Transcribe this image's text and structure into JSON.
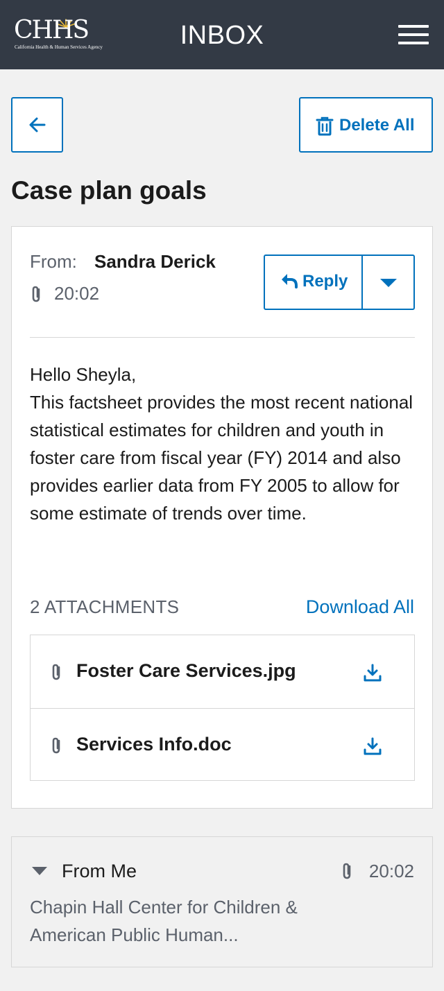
{
  "header": {
    "logo_text": "CHHS",
    "logo_subtext": "California Health & Human Services Agency",
    "title": "INBOX",
    "menu_icon": "hamburger-icon"
  },
  "toolbar": {
    "back_icon": "arrow-left-icon",
    "delete_all_label": "Delete All",
    "delete_icon": "trash-icon"
  },
  "thread": {
    "subject": "Case plan goals"
  },
  "message": {
    "from_label": "From:",
    "from_name": "Sandra Derick",
    "time": "20:02",
    "reply_label": "Reply",
    "body_greeting": "Hello Sheyla,",
    "body_text": "This factsheet provides the most recent national statistical estimates for children and youth in foster care from fiscal year (FY) 2014 and also provides earlier data from FY 2005 to allow for some estimate of trends over time.",
    "attachments_label": "2 ATTACHMENTS",
    "download_all_label": "Download All",
    "attachments": [
      {
        "name": "Foster Care Services.jpg"
      },
      {
        "name": "Services Info.doc"
      }
    ]
  },
  "collapsed_message": {
    "from": "From Me",
    "time": "20:02",
    "preview_line1": "Chapin Hall Center for Children &",
    "preview_line2": "American Public Human..."
  },
  "colors": {
    "header_bg": "#333a45",
    "accent": "#0071bc",
    "page_bg": "#f1f1f1"
  }
}
